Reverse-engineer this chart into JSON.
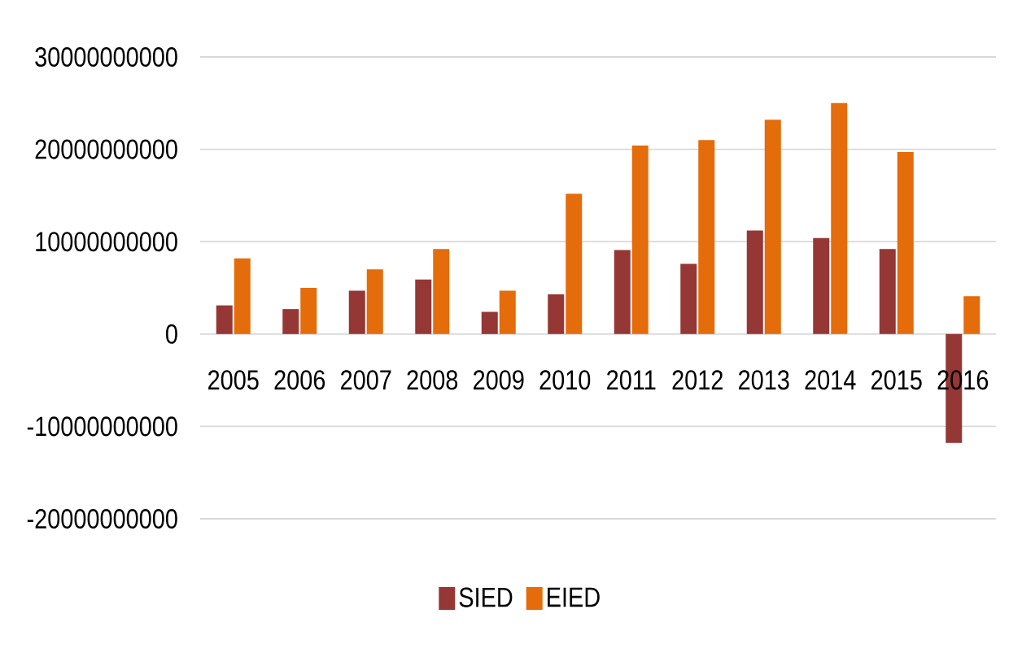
{
  "chart_data": {
    "type": "bar",
    "categories": [
      "2005",
      "2006",
      "2007",
      "2008",
      "2009",
      "2010",
      "2011",
      "2012",
      "2013",
      "2014",
      "2015",
      "2016"
    ],
    "series": [
      {
        "name": "SIED",
        "color": "#953735",
        "values": [
          3100000000,
          2700000000,
          4700000000,
          5900000000,
          2400000000,
          4300000000,
          9100000000,
          7600000000,
          11200000000,
          10400000000,
          9200000000,
          -11800000000
        ]
      },
      {
        "name": "EIED",
        "color": "#e46c0a",
        "values": [
          8200000000,
          5000000000,
          7000000000,
          9200000000,
          4700000000,
          15200000000,
          20400000000,
          21000000000,
          23200000000,
          25000000000,
          19700000000,
          4100000000
        ]
      }
    ],
    "ylim": [
      -20000000000,
      30000000000
    ],
    "yticks": [
      -20000000000,
      -10000000000,
      0,
      10000000000,
      20000000000,
      30000000000
    ],
    "grid": "y",
    "legend": "bottom"
  }
}
